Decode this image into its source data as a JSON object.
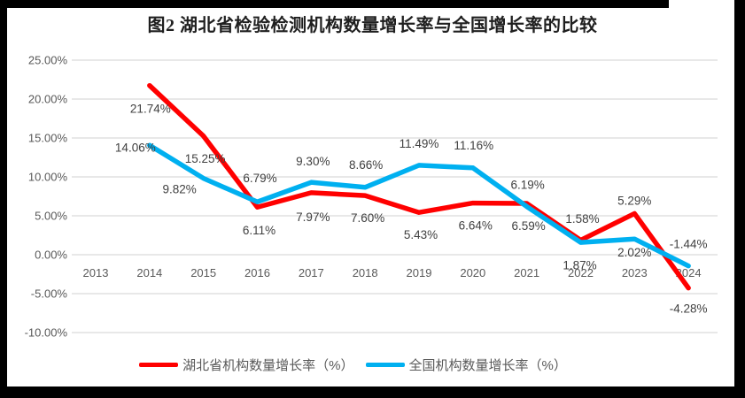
{
  "chart_data": {
    "type": "line",
    "title": "图2 湖北省检验检测机构数量增长率与全国增长率的比较",
    "categories": [
      "2013",
      "2014",
      "2015",
      "2016",
      "2017",
      "2018",
      "2019",
      "2020",
      "2021",
      "2022",
      "2023",
      "2024"
    ],
    "series": [
      {
        "name": "湖北省机构数量增长率（%）",
        "color": "#FF0000",
        "values": [
          null,
          21.74,
          15.25,
          6.11,
          7.97,
          7.6,
          5.43,
          6.64,
          6.59,
          1.87,
          5.29,
          -4.28
        ],
        "point_labels": [
          null,
          "21.74%",
          "15.25%",
          "6.11%",
          "7.97%",
          "7.60%",
          "5.43%",
          "6.64%",
          "6.59%",
          "1.87%",
          "5.29%",
          "-4.28%"
        ],
        "label_offsets": [
          null,
          [
            1,
            31
          ],
          [
            2,
            30
          ],
          [
            2,
            31
          ],
          [
            2,
            32
          ],
          [
            3,
            30
          ],
          [
            2,
            30
          ],
          [
            3,
            30
          ],
          [
            2,
            30
          ],
          [
            -1,
            33
          ],
          [
            0,
            -10
          ],
          [
            0,
            28
          ]
        ]
      },
      {
        "name": "全国机构数量增长率（%）",
        "color": "#00B0F0",
        "values": [
          null,
          14.06,
          9.82,
          6.79,
          9.3,
          8.66,
          11.49,
          11.16,
          6.19,
          1.58,
          2.02,
          -1.44
        ],
        "point_labels": [
          null,
          "14.06%",
          "9.82%",
          "6.79%",
          "9.30%",
          "8.66%",
          "11.49%",
          "11.16%",
          "6.19%",
          "1.58%",
          "2.02%",
          "-1.44%"
        ],
        "label_offsets": [
          null,
          [
            -16,
            7
          ],
          [
            -27,
            17
          ],
          [
            3,
            -22
          ],
          [
            2,
            -19
          ],
          [
            1,
            -21
          ],
          [
            0,
            -20
          ],
          [
            1,
            -21
          ],
          [
            1,
            -20
          ],
          [
            2,
            -22
          ],
          [
            0,
            20
          ],
          [
            0,
            -20
          ]
        ]
      }
    ],
    "y_axis": {
      "min": -10,
      "max": 25,
      "step": 5,
      "tick_labels": [
        "25.00%",
        "20.00%",
        "15.00%",
        "10.00%",
        "5.00%",
        "0.00%",
        "-5.00%",
        "-10.00%"
      ]
    },
    "x_axis": {
      "tick_labels": [
        "2013",
        "2014",
        "2015",
        "2016",
        "2017",
        "2018",
        "2019",
        "2020",
        "2021",
        "2022",
        "2023",
        "2024"
      ]
    },
    "grid": true,
    "legend_position": "bottom",
    "colors": {
      "gridline": "#D9D9D9",
      "axis_text": "#595959",
      "data_label_text": "#404040",
      "title_text": "#1f1f1f",
      "legend_text": "#595959"
    }
  }
}
